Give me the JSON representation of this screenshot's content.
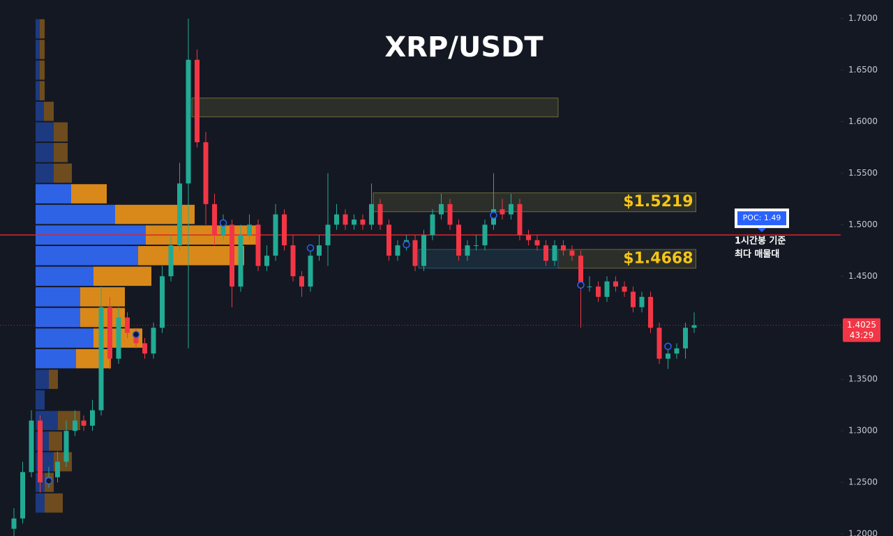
{
  "chart_data": {
    "type": "candlestick",
    "title": "XRP/USDT",
    "ylim": [
      1.198,
      1.718
    ],
    "yticks": [
      {
        "value": 1.2,
        "label": "1.2000"
      },
      {
        "value": 1.25,
        "label": "1.2500"
      },
      {
        "value": 1.3,
        "label": "1.3000"
      },
      {
        "value": 1.35,
        "label": "1.3500"
      },
      {
        "value": 1.4,
        "label": "1.4000"
      },
      {
        "value": 1.45,
        "label": "1.4500"
      },
      {
        "value": 1.5,
        "label": "1.5000"
      },
      {
        "value": 1.55,
        "label": "1.5500"
      },
      {
        "value": 1.6,
        "label": "1.6000"
      },
      {
        "value": 1.65,
        "label": "1.6500"
      },
      {
        "value": 1.7,
        "label": "1.7000"
      }
    ],
    "up_color": "#22ab94",
    "down_color": "#f23645",
    "open": [
      1.205,
      1.215,
      1.26,
      1.31,
      1.25,
      1.255,
      1.27,
      1.3,
      1.31,
      1.305,
      1.32,
      1.42,
      1.37,
      1.41,
      1.395,
      1.385,
      1.375,
      1.4,
      1.45,
      1.48,
      1.54,
      1.66,
      1.58,
      1.52,
      1.49,
      1.5,
      1.44,
      1.49,
      1.5,
      1.46,
      1.47,
      1.51,
      1.48,
      1.45,
      1.44,
      1.47,
      1.48,
      1.5,
      1.51,
      1.5,
      1.505,
      1.5,
      1.52,
      1.5,
      1.47,
      1.48,
      1.485,
      1.46,
      1.49,
      1.51,
      1.52,
      1.5,
      1.47,
      1.48,
      1.48,
      1.5,
      1.515,
      1.51,
      1.52,
      1.49,
      1.485,
      1.48,
      1.465,
      1.48,
      1.475,
      1.47,
      1.44,
      1.44,
      1.43,
      1.445,
      1.44,
      1.435,
      1.42,
      1.43,
      1.4,
      1.37,
      1.375,
      1.38,
      1.4
    ],
    "high": [
      1.225,
      1.27,
      1.32,
      1.315,
      1.265,
      1.28,
      1.31,
      1.32,
      1.315,
      1.33,
      1.44,
      1.43,
      1.42,
      1.415,
      1.4,
      1.39,
      1.405,
      1.46,
      1.49,
      1.56,
      1.7,
      1.67,
      1.59,
      1.53,
      1.51,
      1.505,
      1.5,
      1.51,
      1.505,
      1.48,
      1.52,
      1.515,
      1.49,
      1.455,
      1.475,
      1.49,
      1.55,
      1.52,
      1.515,
      1.51,
      1.51,
      1.54,
      1.525,
      1.505,
      1.485,
      1.49,
      1.49,
      1.495,
      1.515,
      1.53,
      1.525,
      1.505,
      1.485,
      1.49,
      1.505,
      1.55,
      1.525,
      1.53,
      1.525,
      1.495,
      1.49,
      1.485,
      1.485,
      1.485,
      1.48,
      1.475,
      1.45,
      1.445,
      1.45,
      1.45,
      1.445,
      1.44,
      1.435,
      1.435,
      1.405,
      1.38,
      1.385,
      1.405,
      1.415
    ],
    "low": [
      1.195,
      1.21,
      1.255,
      1.24,
      1.245,
      1.25,
      1.265,
      1.295,
      1.3,
      1.3,
      1.315,
      1.36,
      1.365,
      1.39,
      1.38,
      1.37,
      1.37,
      1.395,
      1.445,
      1.475,
      1.38,
      1.575,
      1.5,
      1.48,
      1.485,
      1.42,
      1.435,
      1.485,
      1.455,
      1.455,
      1.465,
      1.475,
      1.445,
      1.43,
      1.435,
      1.465,
      1.46,
      1.495,
      1.495,
      1.495,
      1.495,
      1.495,
      1.495,
      1.465,
      1.465,
      1.475,
      1.455,
      1.455,
      1.485,
      1.505,
      1.495,
      1.465,
      1.465,
      1.475,
      1.475,
      1.495,
      1.505,
      1.505,
      1.485,
      1.48,
      1.475,
      1.46,
      1.46,
      1.47,
      1.465,
      1.4,
      1.435,
      1.425,
      1.425,
      1.435,
      1.43,
      1.415,
      1.415,
      1.395,
      1.365,
      1.36,
      1.37,
      1.37,
      1.395
    ],
    "close": [
      1.215,
      1.26,
      1.31,
      1.25,
      1.255,
      1.27,
      1.3,
      1.31,
      1.305,
      1.32,
      1.42,
      1.37,
      1.41,
      1.395,
      1.385,
      1.375,
      1.4,
      1.45,
      1.48,
      1.54,
      1.66,
      1.58,
      1.52,
      1.49,
      1.5,
      1.44,
      1.49,
      1.5,
      1.46,
      1.47,
      1.51,
      1.48,
      1.45,
      1.44,
      1.47,
      1.48,
      1.5,
      1.51,
      1.5,
      1.505,
      1.5,
      1.52,
      1.5,
      1.47,
      1.48,
      1.485,
      1.46,
      1.49,
      1.51,
      1.52,
      1.5,
      1.47,
      1.48,
      1.48,
      1.5,
      1.515,
      1.51,
      1.52,
      1.49,
      1.485,
      1.48,
      1.465,
      1.48,
      1.475,
      1.47,
      1.44,
      1.44,
      1.43,
      1.445,
      1.44,
      1.435,
      1.42,
      1.43,
      1.4,
      1.37,
      1.375,
      1.38,
      1.4,
      1.4025
    ],
    "countdown": "43:29",
    "markers": {
      "color": "#2962ff",
      "index": [
        4,
        14,
        24,
        34,
        45,
        55,
        65,
        75
      ],
      "values": [
        1.2515,
        1.3935,
        1.5017,
        1.4774,
        1.4807,
        1.5092,
        1.4415,
        1.382
      ]
    },
    "zones": [
      {
        "low": 1.6046,
        "high": 1.6229,
        "start": 20.4,
        "end": 62.4,
        "color": "#6b6b3a"
      },
      {
        "low": 1.5126,
        "high": 1.5309,
        "start": 41.2,
        "end": 78.2,
        "color": "#6b6b3a",
        "label": "$1.5219"
      },
      {
        "low": 1.4578,
        "high": 1.476,
        "start": 62.4,
        "end": 78.2,
        "color": "#6b6b3a",
        "label": "$1.4668"
      },
      {
        "low": 1.4578,
        "high": 1.476,
        "start": 46.4,
        "end": 62.4,
        "color": "#2c5a70"
      }
    ],
    "zone_label_color": "#f5c518",
    "poc": {
      "value": 1.49,
      "label": "POC: 1.49",
      "color": "#e0242b",
      "box_color": "#2962ff"
    },
    "poc_note": [
      "1시간봉 기준",
      "최다 매물대"
    ],
    "profile": {
      "bins": [
        1.7,
        1.68,
        1.66,
        1.64,
        1.62,
        1.6,
        1.58,
        1.56,
        1.54,
        1.52,
        1.5,
        1.48,
        1.46,
        1.44,
        1.42,
        1.4,
        1.38,
        1.36,
        1.34,
        1.32,
        1.3,
        1.28,
        1.26,
        1.24,
        1.22
      ],
      "buy": [
        6,
        6,
        6,
        6,
        12,
        26,
        26,
        26,
        51,
        114,
        158,
        147,
        83,
        64,
        64,
        83,
        58,
        19,
        13,
        32,
        19,
        26,
        13,
        13
      ],
      "sell": [
        7,
        7,
        7,
        7,
        14,
        20,
        20,
        26,
        51,
        114,
        160,
        152,
        83,
        64,
        64,
        70,
        50,
        13,
        0,
        32,
        19,
        26,
        13,
        26
      ],
      "value_area": [
        1.36,
        1.54
      ],
      "buy_color": "#2f63e6",
      "sell_color": "#d9891a",
      "dim_buy_color": "#1d3a80",
      "dim_sell_color": "#6e4c1e"
    }
  }
}
